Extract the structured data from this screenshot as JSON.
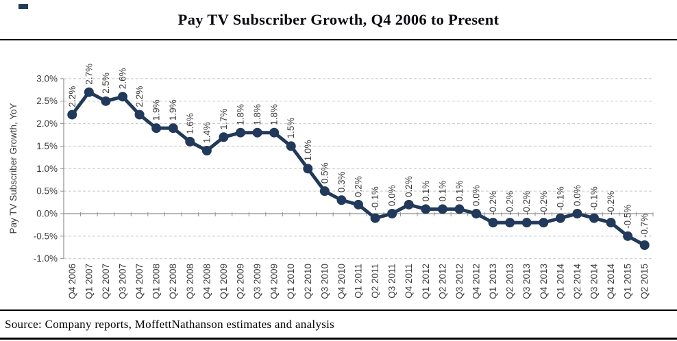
{
  "header": {
    "title": "Pay TV Subscriber Growth, Q4 2006 to Present"
  },
  "footer": {
    "source": "Source: Company reports, MoffettNathanson estimates and analysis"
  },
  "colors": {
    "line": "#21395A",
    "grid": "#C6C6C6",
    "axis": "#8F8F8F",
    "tick_text": "#3D3D3D",
    "title_text": "#0A0A10",
    "rule": "#000000",
    "brand_mark": "#21395A"
  },
  "chart_data": {
    "type": "line",
    "title": "Pay TV Subscriber Growth, Q4 2006 to Present",
    "xlabel": "",
    "ylabel": "Pay TV Subscriber Growth, YoY",
    "categories": [
      "Q4 2006",
      "Q1 2007",
      "Q2 2007",
      "Q3 2007",
      "Q4 2007",
      "Q1 2008",
      "Q2 2008",
      "Q3 2008",
      "Q4 2008",
      "Q1 2009",
      "Q2 2009",
      "Q3 2009",
      "Q4 2009",
      "Q1 2010",
      "Q2 2010",
      "Q3 2010",
      "Q4 2010",
      "Q1 2011",
      "Q2 2011",
      "Q3 2011",
      "Q4 2011",
      "Q1 2012",
      "Q2 2012",
      "Q3 2012",
      "Q4 2012",
      "Q1 2013",
      "Q2 2013",
      "Q3 2013",
      "Q4 2013",
      "Q1 2014",
      "Q2 2014",
      "Q3 2014",
      "Q4 2014",
      "Q1 2015",
      "Q2 2015"
    ],
    "values": [
      2.2,
      2.7,
      2.5,
      2.6,
      2.2,
      1.9,
      1.9,
      1.6,
      1.4,
      1.7,
      1.8,
      1.8,
      1.8,
      1.5,
      1.0,
      0.5,
      0.3,
      0.2,
      -0.1,
      0.0,
      0.2,
      0.1,
      0.1,
      0.1,
      0.0,
      -0.2,
      -0.2,
      -0.2,
      -0.2,
      -0.1,
      0.0,
      -0.1,
      -0.2,
      -0.5,
      -0.7
    ],
    "point_labels": [
      "2.2%",
      "2.7%",
      "2.5%",
      "2.6%",
      "2.2%",
      "1.9%",
      "1.9%",
      "1.6%",
      "1.4%",
      "1.7%",
      "1.8%",
      "1.8%",
      "1.8%",
      "1.5%",
      "1.0%",
      "0.5%",
      "0.3%",
      "0.2%",
      "-0.1%",
      "0.0%",
      "0.2%",
      "0.1%",
      "0.1%",
      "0.1%",
      "0.0%",
      "-0.2%",
      "-0.2%",
      "-0.2%",
      "-0.2%",
      "-0.1%",
      "0.0%",
      "-0.1%",
      "-0.2%",
      "-0.5%",
      "-0.7%"
    ],
    "y_tick_values": [
      3.0,
      2.5,
      2.0,
      1.5,
      1.0,
      0.5,
      0.0,
      -0.5,
      -1.0
    ],
    "y_tick_labels": [
      "3.0%",
      "2.5%",
      "2.0%",
      "1.5%",
      "1.0%",
      "0.5%",
      "0.0%",
      "-0.5%",
      "-1.0%"
    ],
    "ylim": [
      -1.0,
      3.0
    ],
    "grid": "horizontal dashed light-gray, solid line at 0.0%",
    "legend_position": "none",
    "marker": "filled-circle",
    "data_label_rotation_deg": 90,
    "x_tick_rotation_deg": 90
  }
}
